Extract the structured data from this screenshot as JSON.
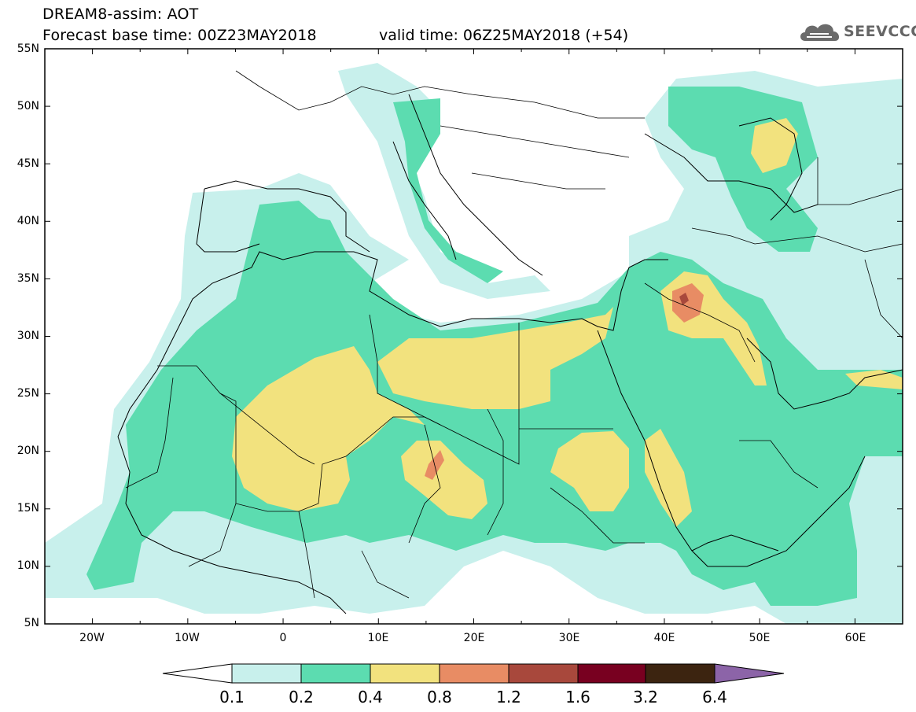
{
  "header": {
    "title_line1": "DREAM8-assim: AOT",
    "title_line2": "Forecast base time: 00Z23MAY2018",
    "valid_time": "valid time: 06Z25MAY2018 (+54)",
    "logo_text": "SEEVCCC"
  },
  "map": {
    "lon_range": [
      -25,
      65
    ],
    "lat_range": [
      5,
      55
    ],
    "lat_labels": [
      "55N",
      "50N",
      "45N",
      "40N",
      "35N",
      "30N",
      "25N",
      "20N",
      "15N",
      "10N",
      "5N"
    ],
    "lon_labels": [
      "20W",
      "10W",
      "0",
      "10E",
      "20E",
      "30E",
      "40E",
      "50E",
      "60E"
    ]
  },
  "colorbar": {
    "labels": [
      "0.1",
      "0.2",
      "0.4",
      "0.8",
      "1.2",
      "1.6",
      "3.2",
      "6.4"
    ],
    "colors": [
      "#ffffff",
      "#c8f0ec",
      "#5cdcb0",
      "#f2e27e",
      "#e88c64",
      "#a8483c",
      "#780020",
      "#3c2410",
      "#8c64a8"
    ]
  }
}
